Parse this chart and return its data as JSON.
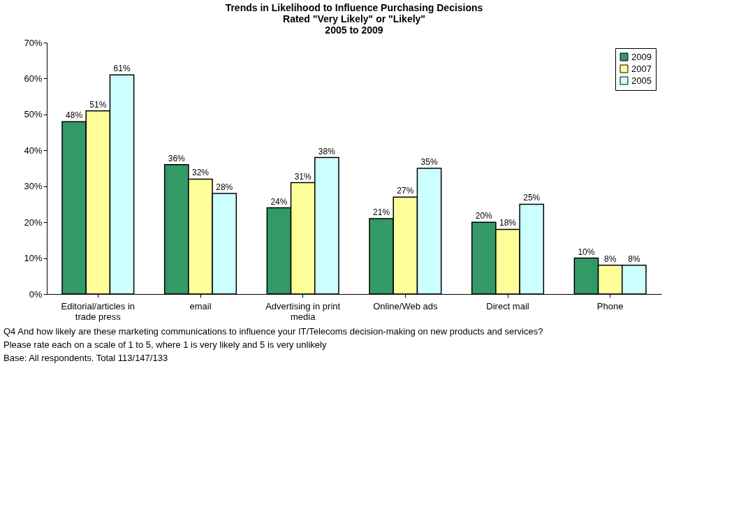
{
  "chart_data": {
    "type": "bar",
    "title": "Trends in Likelihood to Influence Purchasing Decisions",
    "subtitle": "Rated \"Very Likely\" or \"Likely\"\n2005 to 2009",
    "categories": [
      "Editorial/articles in trade press",
      "email",
      "Advertising in print media",
      "Online/Web ads",
      "Direct mail",
      "Phone"
    ],
    "series": [
      {
        "name": "2009",
        "color": "#339966",
        "values": [
          48,
          36,
          24,
          21,
          20,
          10
        ],
        "value_labels": [
          "48%",
          "36%",
          "24%",
          "21%",
          "20%",
          "10%"
        ]
      },
      {
        "name": "2007",
        "color": "#ffff99",
        "values": [
          51,
          32,
          31,
          27,
          18,
          8
        ],
        "value_labels": [
          "51%",
          "32%",
          "31%",
          "27%",
          "18%",
          "8%"
        ]
      },
      {
        "name": "2005",
        "color": "#ccffff",
        "values": [
          61,
          28,
          38,
          35,
          25,
          8
        ],
        "value_labels": [
          "61%",
          "28%",
          "38%",
          "35%",
          "25%",
          "8%"
        ]
      }
    ],
    "ylim": [
      0,
      70
    ],
    "yticks": [
      {
        "value": 0,
        "label": "0%"
      },
      {
        "value": 10,
        "label": "10%"
      },
      {
        "value": 20,
        "label": "20%"
      },
      {
        "value": 30,
        "label": "30%"
      },
      {
        "value": 40,
        "label": "40%"
      },
      {
        "value": 50,
        "label": "50%"
      },
      {
        "value": 60,
        "label": "60%"
      },
      {
        "value": 70,
        "label": "70%"
      }
    ],
    "grid": false,
    "legend": "top right",
    "annotations": [
      "Q4 And how likely are these marketing communications to influence your IT/Telecoms decision-making on new products and services?",
      "   Please rate each on a scale of 1 to 5, where 1 is very likely and 5 is very unlikely",
      "Base: All respondents. Total 113/147/133"
    ]
  }
}
